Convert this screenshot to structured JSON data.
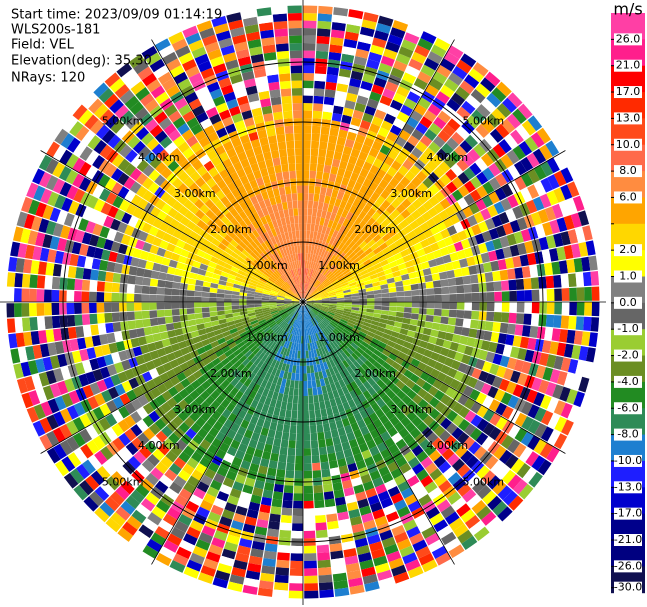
{
  "header": {
    "start_time": "Start time: 2023/09/09 01:14:19",
    "instrument": "WLS200s-181",
    "field": "Field: VEL",
    "elevation": "Elevation(deg): 35.30",
    "nrays": "NRays: 120"
  },
  "range_rings": [
    {
      "value": 1,
      "label": "1.00km"
    },
    {
      "value": 2,
      "label": "2.00km"
    },
    {
      "value": 3,
      "label": "3.00km"
    },
    {
      "value": 4,
      "label": "4.00km"
    },
    {
      "value": 5,
      "label": "5.00km"
    }
  ],
  "colorbar": {
    "unit": "m/s",
    "boundaries": [
      26,
      21,
      17,
      13,
      10,
      8,
      6,
      4,
      2,
      1,
      0,
      -1,
      -2,
      -4,
      -6,
      -8,
      -10,
      -13,
      -17,
      -21,
      -26,
      -30
    ],
    "labels": [
      "26.0",
      "21.0",
      "17.0",
      "13.0",
      "10.0",
      "8.0",
      "6.0",
      null,
      "2.0",
      "1.0",
      "0.0",
      "-1.0",
      "-2.0",
      "-4.0",
      "-6.0",
      "-8.0",
      "-10.0",
      "-13.0",
      "-17.0",
      "-21.0",
      "-26.0",
      "-30.0"
    ],
    "colors": [
      "#ff3fa5",
      "#ff1f8c",
      "#ff0000",
      "#ff2a00",
      "#ff4a1a",
      "#ff6a4a",
      "#ff8c40",
      "#ffa500",
      "#ffd700",
      "#ffff00",
      "#808080",
      "#666666",
      "#9acd32",
      "#6b8e23",
      "#228b22",
      "#2e8b57",
      "#1e7fd0",
      "#1e1eff",
      "#0000cd",
      "#00008b",
      "#000080",
      "#101050"
    ]
  }
}
